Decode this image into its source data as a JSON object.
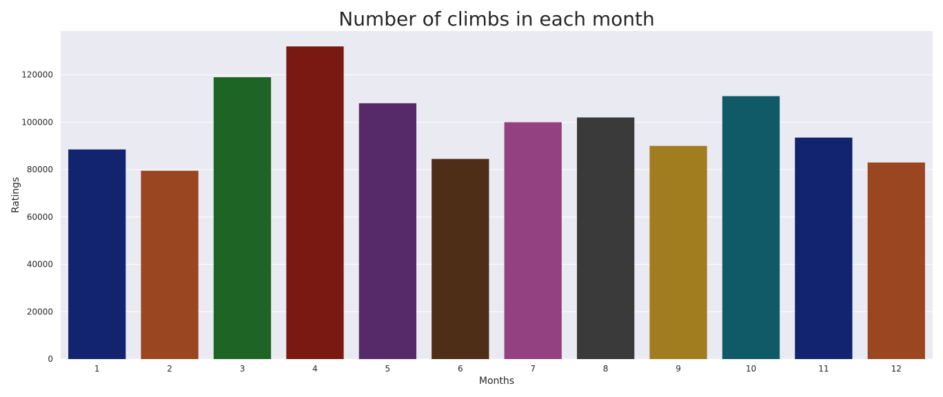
{
  "chart_data": {
    "type": "bar",
    "title": "Number of climbs in each month",
    "xlabel": "Months",
    "ylabel": "Ratings",
    "categories": [
      "1",
      "2",
      "3",
      "4",
      "5",
      "6",
      "7",
      "8",
      "9",
      "10",
      "11",
      "12"
    ],
    "values": [
      88500,
      79500,
      119000,
      132000,
      108000,
      84500,
      100000,
      102000,
      90000,
      111000,
      93500,
      83000
    ],
    "colors": [
      "#12246f",
      "#9a4620",
      "#1e6424",
      "#7a1812",
      "#562a68",
      "#4f2e17",
      "#934180",
      "#3a3a3a",
      "#a17d20",
      "#0f5a66",
      "#12246f",
      "#9a4620"
    ],
    "yticks": [
      0,
      20000,
      40000,
      60000,
      80000,
      100000,
      120000
    ],
    "ylim": [
      0,
      138500
    ],
    "grid": true,
    "background": "#eaeaf2",
    "gridcolor": "#ffffff"
  }
}
